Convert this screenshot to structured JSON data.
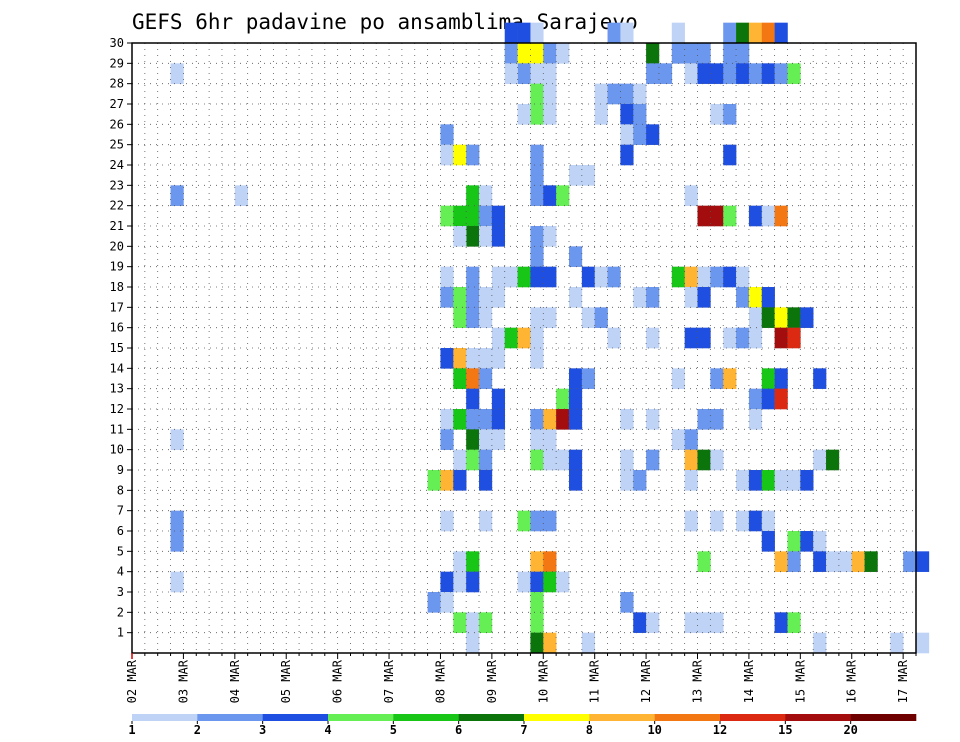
{
  "chart_data": {
    "type": "heatmap",
    "title": "GEFS 6hr padavine po ansamblima Sarajevo",
    "xlabel": "",
    "ylabel": "",
    "x_tick_labels": [
      "02 MAR",
      "03 MAR",
      "04 MAR",
      "05 MAR",
      "06 MAR",
      "07 MAR",
      "08 MAR",
      "09 MAR",
      "10 MAR",
      "11 MAR",
      "12 MAR",
      "13 MAR",
      "14 MAR",
      "15 MAR",
      "16 MAR",
      "17 MAR"
    ],
    "x_steps": 61,
    "y_ticks": [
      1,
      2,
      3,
      4,
      5,
      6,
      7,
      8,
      9,
      10,
      11,
      12,
      13,
      14,
      15,
      16,
      17,
      18,
      19,
      20,
      21,
      22,
      23,
      24,
      25,
      26,
      27,
      28,
      29,
      30
    ],
    "ylim": [
      0,
      30
    ],
    "grid": true,
    "colorbar": {
      "levels": [
        "1",
        "2",
        "3",
        "4",
        "5",
        "6",
        "7",
        "8",
        "10",
        "12",
        "15",
        "20"
      ],
      "colors": [
        "#bfd3f7",
        "#6b97ee",
        "#1f4fe0",
        "#66ee55",
        "#17c617",
        "#0b750b",
        "#ffff00",
        "#ffb533",
        "#f37814",
        "#dc2a12",
        "#a30d0d",
        "#6e0000"
      ]
    },
    "cells_note": "each entry is [time_step, member, color_class]; time_step 0 = 02 MAR 00z, 4 steps per day",
    "cells": [
      [
        29,
        30,
        3
      ],
      [
        30,
        30,
        3
      ],
      [
        31,
        30,
        1
      ],
      [
        37,
        30,
        2
      ],
      [
        38,
        30,
        1
      ],
      [
        42,
        30,
        1
      ],
      [
        46,
        30,
        2
      ],
      [
        47,
        30,
        6
      ],
      [
        48,
        30,
        8
      ],
      [
        49,
        30,
        9
      ],
      [
        50,
        30,
        3
      ],
      [
        29,
        29,
        2
      ],
      [
        30,
        29,
        7
      ],
      [
        31,
        29,
        7
      ],
      [
        32,
        29,
        2
      ],
      [
        33,
        29,
        1
      ],
      [
        40,
        29,
        6
      ],
      [
        42,
        29,
        2
      ],
      [
        43,
        29,
        2
      ],
      [
        44,
        29,
        2
      ],
      [
        46,
        29,
        2
      ],
      [
        47,
        29,
        2
      ],
      [
        40,
        28,
        2
      ],
      [
        32,
        28,
        1
      ],
      [
        41,
        28,
        2
      ],
      [
        30,
        28,
        2
      ],
      [
        31,
        28,
        1
      ],
      [
        45,
        28,
        3
      ],
      [
        46,
        28,
        2
      ],
      [
        47,
        28,
        3
      ],
      [
        48,
        28,
        2
      ],
      [
        49,
        28,
        3
      ],
      [
        50,
        28,
        2
      ],
      [
        51,
        28,
        4
      ],
      [
        3,
        28,
        1
      ],
      [
        29,
        28,
        1
      ],
      [
        43,
        28,
        1
      ],
      [
        44,
        28,
        3
      ],
      [
        31,
        27,
        4
      ],
      [
        32,
        27,
        1
      ],
      [
        38,
        27,
        2
      ],
      [
        39,
        27,
        1
      ],
      [
        36,
        27,
        1
      ],
      [
        37,
        27,
        2
      ],
      [
        31,
        26,
        4
      ],
      [
        32,
        26,
        1
      ],
      [
        30,
        26,
        1
      ],
      [
        38,
        26,
        3
      ],
      [
        39,
        26,
        2
      ],
      [
        36,
        26,
        1
      ],
      [
        45,
        26,
        1
      ],
      [
        46,
        26,
        2
      ],
      [
        38,
        25,
        1
      ],
      [
        39,
        25,
        2
      ],
      [
        40,
        25,
        3
      ],
      [
        24,
        25,
        2
      ],
      [
        24,
        24,
        1
      ],
      [
        25,
        24,
        7
      ],
      [
        26,
        24,
        2
      ],
      [
        31,
        24,
        2
      ],
      [
        38,
        24,
        3
      ],
      [
        46,
        24,
        3
      ],
      [
        31,
        23,
        2
      ],
      [
        34,
        23,
        1
      ],
      [
        35,
        23,
        1
      ],
      [
        31,
        22,
        2
      ],
      [
        32,
        22,
        3
      ],
      [
        33,
        22,
        4
      ],
      [
        26,
        22,
        5
      ],
      [
        27,
        22,
        1
      ],
      [
        3,
        22,
        2
      ],
      [
        8,
        22,
        1
      ],
      [
        43,
        22,
        1
      ],
      [
        26,
        21,
        5
      ],
      [
        27,
        21,
        2
      ],
      [
        28,
        21,
        3
      ],
      [
        24,
        21,
        4
      ],
      [
        25,
        21,
        5
      ],
      [
        44,
        21,
        11
      ],
      [
        45,
        21,
        11
      ],
      [
        46,
        21,
        4
      ],
      [
        48,
        21,
        3
      ],
      [
        49,
        21,
        1
      ],
      [
        50,
        21,
        9
      ],
      [
        26,
        20,
        6
      ],
      [
        27,
        20,
        1
      ],
      [
        28,
        20,
        3
      ],
      [
        31,
        20,
        2
      ],
      [
        32,
        20,
        1
      ],
      [
        25,
        20,
        1
      ],
      [
        31,
        19,
        2
      ],
      [
        34,
        19,
        2
      ],
      [
        29,
        18,
        1
      ],
      [
        30,
        18,
        5
      ],
      [
        31,
        18,
        3
      ],
      [
        32,
        18,
        3
      ],
      [
        24,
        18,
        1
      ],
      [
        26,
        18,
        2
      ],
      [
        28,
        18,
        1
      ],
      [
        35,
        18,
        3
      ],
      [
        36,
        18,
        1
      ],
      [
        37,
        18,
        2
      ],
      [
        42,
        18,
        5
      ],
      [
        43,
        18,
        8
      ],
      [
        44,
        18,
        1
      ],
      [
        45,
        18,
        2
      ],
      [
        46,
        18,
        3
      ],
      [
        47,
        18,
        1
      ],
      [
        24,
        17,
        2
      ],
      [
        25,
        17,
        4
      ],
      [
        26,
        17,
        2
      ],
      [
        27,
        17,
        1
      ],
      [
        28,
        17,
        1
      ],
      [
        34,
        17,
        1
      ],
      [
        39,
        17,
        1
      ],
      [
        40,
        17,
        2
      ],
      [
        43,
        17,
        1
      ],
      [
        44,
        17,
        3
      ],
      [
        47,
        17,
        2
      ],
      [
        48,
        17,
        7
      ],
      [
        49,
        17,
        3
      ],
      [
        25,
        16,
        4
      ],
      [
        26,
        16,
        2
      ],
      [
        27,
        16,
        1
      ],
      [
        31,
        16,
        1
      ],
      [
        32,
        16,
        1
      ],
      [
        35,
        16,
        1
      ],
      [
        36,
        16,
        2
      ],
      [
        48,
        16,
        1
      ],
      [
        49,
        16,
        6
      ],
      [
        50,
        16,
        7
      ],
      [
        51,
        16,
        6
      ],
      [
        52,
        16,
        3
      ],
      [
        28,
        15,
        1
      ],
      [
        29,
        15,
        5
      ],
      [
        30,
        15,
        8
      ],
      [
        31,
        15,
        1
      ],
      [
        37,
        15,
        1
      ],
      [
        40,
        15,
        1
      ],
      [
        43,
        15,
        3
      ],
      [
        44,
        15,
        3
      ],
      [
        46,
        15,
        1
      ],
      [
        47,
        15,
        2
      ],
      [
        48,
        15,
        1
      ],
      [
        50,
        15,
        11
      ],
      [
        51,
        15,
        10
      ],
      [
        24,
        14,
        3
      ],
      [
        25,
        14,
        8
      ],
      [
        26,
        14,
        1
      ],
      [
        27,
        14,
        1
      ],
      [
        28,
        14,
        1
      ],
      [
        31,
        14,
        1
      ],
      [
        25,
        13,
        5
      ],
      [
        26,
        13,
        9
      ],
      [
        27,
        13,
        2
      ],
      [
        34,
        13,
        3
      ],
      [
        35,
        13,
        2
      ],
      [
        42,
        13,
        1
      ],
      [
        45,
        13,
        2
      ],
      [
        46,
        13,
        8
      ],
      [
        49,
        13,
        5
      ],
      [
        50,
        13,
        3
      ],
      [
        53,
        13,
        3
      ],
      [
        26,
        12,
        3
      ],
      [
        28,
        12,
        3
      ],
      [
        33,
        12,
        4
      ],
      [
        34,
        12,
        3
      ],
      [
        48,
        12,
        2
      ],
      [
        49,
        12,
        3
      ],
      [
        50,
        12,
        10
      ],
      [
        24,
        11,
        1
      ],
      [
        25,
        11,
        5
      ],
      [
        26,
        11,
        2
      ],
      [
        27,
        11,
        2
      ],
      [
        28,
        11,
        3
      ],
      [
        31,
        11,
        2
      ],
      [
        32,
        11,
        8
      ],
      [
        33,
        11,
        11
      ],
      [
        34,
        11,
        3
      ],
      [
        38,
        11,
        1
      ],
      [
        40,
        11,
        1
      ],
      [
        44,
        11,
        2
      ],
      [
        45,
        11,
        2
      ],
      [
        48,
        11,
        1
      ],
      [
        3,
        10,
        1
      ],
      [
        24,
        10,
        2
      ],
      [
        26,
        10,
        6
      ],
      [
        27,
        10,
        1
      ],
      [
        28,
        10,
        1
      ],
      [
        31,
        10,
        1
      ],
      [
        32,
        10,
        1
      ],
      [
        42,
        10,
        1
      ],
      [
        43,
        10,
        2
      ],
      [
        25,
        9,
        1
      ],
      [
        26,
        9,
        4
      ],
      [
        27,
        9,
        2
      ],
      [
        31,
        9,
        4
      ],
      [
        32,
        9,
        1
      ],
      [
        33,
        9,
        1
      ],
      [
        34,
        9,
        3
      ],
      [
        38,
        9,
        1
      ],
      [
        40,
        9,
        2
      ],
      [
        43,
        9,
        8
      ],
      [
        44,
        9,
        6
      ],
      [
        45,
        9,
        1
      ],
      [
        53,
        9,
        1
      ],
      [
        54,
        9,
        6
      ],
      [
        23,
        8,
        4
      ],
      [
        24,
        8,
        8
      ],
      [
        25,
        8,
        3
      ],
      [
        27,
        8,
        3
      ],
      [
        34,
        8,
        3
      ],
      [
        38,
        8,
        1
      ],
      [
        39,
        8,
        2
      ],
      [
        43,
        8,
        1
      ],
      [
        47,
        8,
        1
      ],
      [
        48,
        8,
        3
      ],
      [
        49,
        8,
        5
      ],
      [
        50,
        8,
        1
      ],
      [
        51,
        8,
        1
      ],
      [
        52,
        8,
        3
      ],
      [
        3,
        6,
        2
      ],
      [
        24,
        6,
        1
      ],
      [
        27,
        6,
        1
      ],
      [
        30,
        6,
        4
      ],
      [
        31,
        6,
        2
      ],
      [
        32,
        6,
        2
      ],
      [
        43,
        6,
        1
      ],
      [
        45,
        6,
        1
      ],
      [
        47,
        6,
        1
      ],
      [
        48,
        6,
        3
      ],
      [
        49,
        6,
        1
      ],
      [
        3,
        5,
        2
      ],
      [
        49,
        5,
        3
      ],
      [
        51,
        5,
        4
      ],
      [
        52,
        5,
        3
      ],
      [
        53,
        5,
        1
      ],
      [
        25,
        4,
        1
      ],
      [
        26,
        4,
        5
      ],
      [
        31,
        4,
        8
      ],
      [
        32,
        4,
        9
      ],
      [
        44,
        4,
        4
      ],
      [
        50,
        4,
        8
      ],
      [
        51,
        4,
        2
      ],
      [
        53,
        4,
        3
      ],
      [
        54,
        4,
        1
      ],
      [
        55,
        4,
        1
      ],
      [
        56,
        4,
        8
      ],
      [
        57,
        4,
        6
      ],
      [
        60,
        4,
        2
      ],
      [
        61,
        4,
        3
      ],
      [
        3,
        3,
        1
      ],
      [
        24,
        3,
        3
      ],
      [
        25,
        3,
        1
      ],
      [
        26,
        3,
        3
      ],
      [
        30,
        3,
        1
      ],
      [
        31,
        3,
        3
      ],
      [
        32,
        3,
        5
      ],
      [
        33,
        3,
        1
      ],
      [
        23,
        2,
        2
      ],
      [
        24,
        2,
        1
      ],
      [
        31,
        2,
        4
      ],
      [
        38,
        2,
        2
      ],
      [
        25,
        1,
        4
      ],
      [
        26,
        1,
        1
      ],
      [
        27,
        1,
        4
      ],
      [
        31,
        1,
        4
      ],
      [
        39,
        1,
        3
      ],
      [
        40,
        1,
        1
      ],
      [
        43,
        1,
        1
      ],
      [
        44,
        1,
        1
      ],
      [
        45,
        1,
        1
      ],
      [
        50,
        1,
        3
      ],
      [
        51,
        1,
        4
      ],
      [
        26,
        0,
        1
      ],
      [
        31,
        0,
        6
      ],
      [
        32,
        0,
        8
      ],
      [
        35,
        0,
        1
      ],
      [
        53,
        0,
        1
      ],
      [
        59,
        0,
        1
      ],
      [
        61,
        0,
        1
      ]
    ]
  }
}
